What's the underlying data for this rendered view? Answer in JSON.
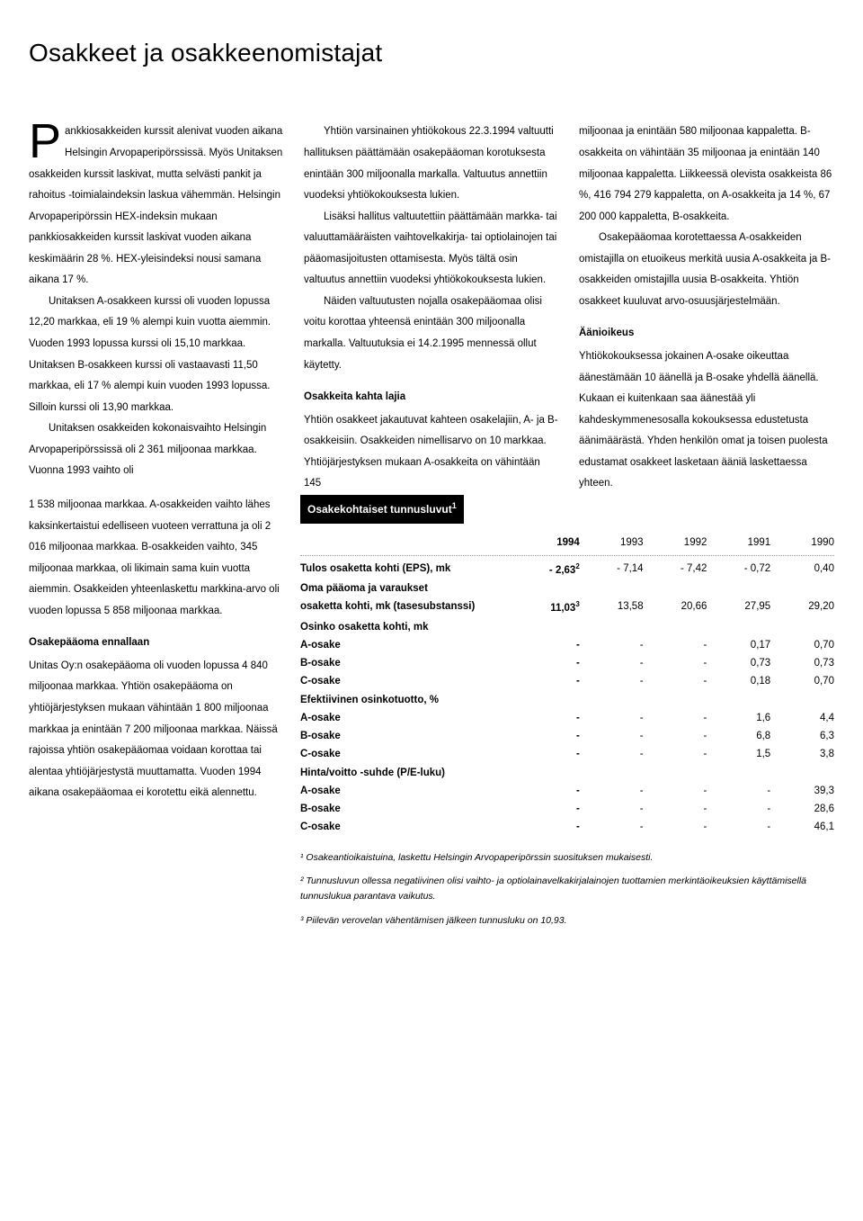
{
  "page_title": "Osakkeet ja osakkeenomistajat",
  "col1": {
    "dropcap": "P",
    "p1": "ankkiosakkeiden kurssit alenivat vuoden aikana Helsingin Arvo­paperipörssissä. Myös Unitaksen osakkeiden kurssit laskivat, mutta selvästi pankit ja rahoitus -toimialaindeksin laskua vähemmän. Helsingin Arvopaperipörssin HEX-indeksin mukaan pankkiosakkeiden kurssit laskivat vuoden aikana keskimäärin 28 %. HEX-yleisindeksi nousi samana aikana 17 %.",
    "p2": "Unitaksen A-osakkeen kurssi oli vuoden lopussa 12,20 markkaa, eli 19 % alempi kuin vuotta aiemmin. Vuoden 1993 lopussa kurssi oli 15,10 markkaa. Unitaksen B-osakkeen kurssi oli vastaavasti 11,50 markkaa, eli 17 % alempi kuin vuoden 1993 lopussa. Silloin kurssi oli 13,90 markkaa.",
    "p3": "Unitaksen osakkeiden kokonaisvaihto Helsingin Arvopaperipörssissä oli 2 361 miljoonaa markkaa. Vuonna 1993 vaihto oli 1 538 miljoonaa markkaa. A-osakkeiden vaihto lähes kaksinkertaistui edelliseen vuoteen verrattuna ja oli 2 016 miljoonaa markkaa. B-osakkeiden vaihto, 345 miljoonaa markkaa, oli likimain sama kuin vuotta aiemmin. Osakkeiden yhteenlaskettu markkina-arvo oli vuoden lopussa 5 858 miljoonaa markkaa.",
    "h1": "Osakepääoma ennallaan",
    "p4": "Unitas Oy:n osakepääoma oli vuoden lopussa 4 840 miljoonaa markkaa. Yhtiön osakepää­oma on yhtiöjärjestyksen mukaan vähintään 1 800 miljoonaa markkaa ja enintään 7 200 miljoonaa markkaa. Näissä rajoissa yhtiön osakepääomaa voidaan korottaa tai alentaa yhtiöjärjestystä muuttamatta. Vuoden 1994 aikana osakepääomaa ei korotettu eikä alennettu."
  },
  "col2": {
    "p1": "Yhtiön varsinainen yhtiökokous 22.3.1994 valtuutti hallituksen päättämään osakepääoman korotuksesta enintään 300 miljoonalla markalla. Valtuutus annettiin vuodeksi yhtiökokouksesta lukien.",
    "p2": "Lisäksi hallitus valtuutettiin päättämään markka- tai valuuttamääräisten vaihtovelka­kirja- tai optiolainojen tai pääomasijoitusten ottamisesta. Myös tältä osin valtuutus annettiin vuodeksi yhtiökokouksesta lukien.",
    "p3": "Näiden valtuutusten nojalla osakepää­omaa olisi voitu  korottaa yhteensä enintään 300 miljoonalla markalla. Valtuutuksia ei 14.2.1995 mennessä ollut käytetty.",
    "h1": "Osakkeita kahta lajia",
    "p4": "Yhtiön osakkeet jakautuvat kahteen osakela­jiin, A- ja B-osakkeisiin. Osakkeiden nimel­lisarvo on 10 markkaa. Yhtiöjärjestyksen mukaan A-osakkeita on vähintään 145"
  },
  "col3": {
    "p1": "miljoonaa ja enintään 580 miljoonaa kappalet­ta. B-osakkeita on vähintään 35 miljoonaa ja enintään 140 miljoonaa kappaletta. Liikkeessä olevista osakkeista 86 %, 416 794 279 kappaletta, on A-osakkeita ja 14 %, 67 200 000 kappaletta, B-osakkeita.",
    "p2": "Osakepääomaa korotettaessa A-osakkeiden omistajilla on etuoikeus merkitä uusia A-osakkeita ja B-osakkeiden omistajilla uusia B-osakkeita. Yhtiön osakkeet kuuluvat arvo-osuusjärjestelmään.",
    "h1": "Äänioikeus",
    "p3": "Yhtiökokouksessa jokainen A-osake oikeuttaa äänestämään 10 äänellä ja B-osake yhdellä äänellä. Kukaan ei kuitenkaan saa äänestää yli kahdeskymmenesosalla kokouksessa edustetusta äänimäärästä. Yhden henkilön omat ja toisen puolesta edustamat osakkeet lasketaan ääniä laskettaessa yhteen."
  },
  "table": {
    "title": "Osakekohtaiset tunnusluvut",
    "years_bold": "1994",
    "years": [
      "1993",
      "1992",
      "1991",
      "1990"
    ],
    "rows": [
      {
        "label": "Tulos osaketta kohti (EPS), mk",
        "bold": true,
        "v1994": "- 2,63",
        "sup": "2",
        "vals": [
          "- 7,14",
          "- 7,42",
          "- 0,72",
          "0,40"
        ]
      },
      {
        "label": "Oma pääoma ja varaukset",
        "bold": true,
        "noval": true
      },
      {
        "label": "osaketta kohti, mk (tasesubstanssi)",
        "bold": true,
        "v1994": "11,03",
        "sup": "3",
        "vals": [
          "13,58",
          "20,66",
          "27,95",
          "29,20"
        ]
      },
      {
        "label": "Osinko osaketta kohti, mk",
        "bold": true,
        "noval": true
      },
      {
        "label": "A-osake",
        "bold": true,
        "v1994": "-",
        "vals": [
          "-",
          "-",
          "0,17",
          "0,70"
        ]
      },
      {
        "label": "B-osake",
        "bold": true,
        "v1994": "-",
        "vals": [
          "-",
          "-",
          "0,73",
          "0,73"
        ]
      },
      {
        "label": "C-osake",
        "bold": true,
        "v1994": "-",
        "vals": [
          "-",
          "-",
          "0,18",
          "0,70"
        ]
      },
      {
        "label": "Efektiivinen osinkotuotto, %",
        "bold": true,
        "noval": true
      },
      {
        "label": "A-osake",
        "bold": true,
        "v1994": "-",
        "vals": [
          "-",
          "-",
          "1,6",
          "4,4"
        ]
      },
      {
        "label": "B-osake",
        "bold": true,
        "v1994": "-",
        "vals": [
          "-",
          "-",
          "6,8",
          "6,3"
        ]
      },
      {
        "label": "C-osake",
        "bold": true,
        "v1994": "-",
        "vals": [
          "-",
          "-",
          "1,5",
          "3,8"
        ]
      },
      {
        "label": "Hinta/voitto -suhde (P/E-luku)",
        "bold": true,
        "noval": true
      },
      {
        "label": "A-osake",
        "bold": true,
        "v1994": "-",
        "vals": [
          "-",
          "-",
          "-",
          "39,3"
        ]
      },
      {
        "label": "B-osake",
        "bold": true,
        "v1994": "-",
        "vals": [
          "-",
          "-",
          "-",
          "28,6"
        ]
      },
      {
        "label": "C-osake",
        "bold": true,
        "v1994": "-",
        "vals": [
          "-",
          "-",
          "-",
          "46,1"
        ]
      }
    ],
    "footnotes": [
      "¹ Osakeantioikaistuina, laskettu Helsingin Arvopaperipörssin suosituksen mukaisesti.",
      "² Tunnusluvun ollessa negatiivinen olisi vaihto- ja optiolainavelkakirjalainojen tuottamien merkintäoikeuksien käyttämisellä tunnuslukua parantava vaikutus.",
      "³ Piilevän verovelan vähentämisen jälkeen tunnusluku on 10,93."
    ]
  }
}
